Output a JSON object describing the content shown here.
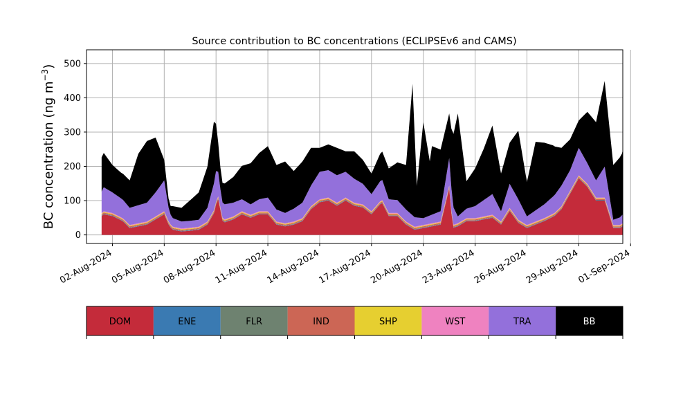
{
  "chart_data": {
    "type": "area",
    "stacked": true,
    "title": "Source contribution to BC concentrations (ECLIPSEv6 and CAMS)",
    "ylabel_main": "BC concentration (ng m",
    "ylabel_sup": "−3",
    "ylabel_close": ")",
    "xlabel": "",
    "ylim": [
      -25,
      540
    ],
    "yticks": [
      0,
      100,
      200,
      300,
      400,
      500
    ],
    "xlim_days": [
      -1.5,
      29.55
    ],
    "grid": true,
    "xtick_labels": [
      "02-Aug-2024",
      "05-Aug-2024",
      "08-Aug-2024",
      "11-Aug-2024",
      "14-Aug-2024",
      "17-Aug-2024",
      "20-Aug-2024",
      "23-Aug-2024",
      "26-Aug-2024",
      "29-Aug-2024",
      "01-Sep-2024"
    ],
    "xtick_days": [
      0,
      3,
      6,
      9,
      12,
      15,
      18,
      21,
      24,
      27,
      30
    ],
    "x_start": "2024-08-01 09:00",
    "x_end": "2024-09-01 00:00",
    "step_hours": 3,
    "series": [
      {
        "name": "DOM",
        "color": "#c42b3a",
        "anchors": [
          [
            -1,
            40
          ],
          [
            -0.5,
            60
          ],
          [
            0,
            55
          ],
          [
            0.6,
            40
          ],
          [
            1,
            20
          ],
          [
            2,
            30
          ],
          [
            2.5,
            45
          ],
          [
            3,
            60
          ],
          [
            3.3,
            25
          ],
          [
            3.5,
            15
          ],
          [
            4,
            10
          ],
          [
            4.5,
            12
          ],
          [
            5,
            15
          ],
          [
            5.5,
            30
          ],
          [
            5.9,
            65
          ],
          [
            6.1,
            110
          ],
          [
            6.4,
            35
          ],
          [
            7,
            45
          ],
          [
            7.5,
            60
          ],
          [
            8,
            50
          ],
          [
            8.5,
            60
          ],
          [
            9,
            60
          ],
          [
            9.5,
            30
          ],
          [
            10,
            25
          ],
          [
            10.5,
            30
          ],
          [
            11,
            40
          ],
          [
            11.5,
            75
          ],
          [
            12,
            95
          ],
          [
            12.5,
            100
          ],
          [
            13,
            85
          ],
          [
            13.5,
            100
          ],
          [
            14,
            85
          ],
          [
            14.5,
            80
          ],
          [
            15,
            60
          ],
          [
            15.6,
            95
          ],
          [
            16,
            55
          ],
          [
            16.5,
            55
          ],
          [
            17,
            30
          ],
          [
            17.5,
            15
          ],
          [
            18,
            20
          ],
          [
            19,
            30
          ],
          [
            19.5,
            135
          ],
          [
            19.7,
            20
          ],
          [
            20,
            25
          ],
          [
            20.5,
            40
          ],
          [
            21,
            40
          ],
          [
            22,
            50
          ],
          [
            22.5,
            30
          ],
          [
            23,
            70
          ],
          [
            23.5,
            35
          ],
          [
            24,
            20
          ],
          [
            24.5,
            30
          ],
          [
            25,
            40
          ],
          [
            25.6,
            55
          ],
          [
            26,
            75
          ],
          [
            26.5,
            120
          ],
          [
            27,
            165
          ],
          [
            27.5,
            140
          ],
          [
            28,
            100
          ],
          [
            28.5,
            100
          ],
          [
            29,
            20
          ],
          [
            29.4,
            20
          ],
          [
            29.8,
            35
          ]
        ]
      },
      {
        "name": "ENE",
        "color": "#3a7ab2",
        "anchors": [
          [
            -1,
            1
          ],
          [
            29.8,
            1
          ]
        ]
      },
      {
        "name": "FLR",
        "color": "#6e8270",
        "anchors": [
          [
            -1,
            1
          ],
          [
            29.8,
            1
          ]
        ]
      },
      {
        "name": "IND",
        "color": "#cc6655",
        "anchors": [
          [
            -1,
            3
          ],
          [
            29.8,
            3
          ]
        ]
      },
      {
        "name": "SHP",
        "color": "#e6cf30",
        "anchors": [
          [
            -1,
            2
          ],
          [
            29.8,
            2
          ]
        ]
      },
      {
        "name": "WST",
        "color": "#ef82c0",
        "anchors": [
          [
            -1,
            2
          ],
          [
            29.8,
            2
          ]
        ]
      },
      {
        "name": "TRA",
        "color": "#9370db",
        "anchors": [
          [
            -1,
            40
          ],
          [
            -0.5,
            70
          ],
          [
            0,
            60
          ],
          [
            1,
            50
          ],
          [
            2,
            55
          ],
          [
            2.5,
            70
          ],
          [
            3,
            90
          ],
          [
            3.3,
            30
          ],
          [
            3.5,
            25
          ],
          [
            4,
            20
          ],
          [
            5,
            20
          ],
          [
            5.5,
            40
          ],
          [
            6,
            90
          ],
          [
            6.3,
            45
          ],
          [
            7,
            40
          ],
          [
            8,
            30
          ],
          [
            8.5,
            35
          ],
          [
            9,
            40
          ],
          [
            9.5,
            35
          ],
          [
            10,
            30
          ],
          [
            11,
            45
          ],
          [
            11.5,
            60
          ],
          [
            12,
            80
          ],
          [
            13,
            80
          ],
          [
            14,
            70
          ],
          [
            14.5,
            60
          ],
          [
            15,
            50
          ],
          [
            15.6,
            60
          ],
          [
            16,
            40
          ],
          [
            17,
            35
          ],
          [
            18,
            20
          ],
          [
            19,
            30
          ],
          [
            19.5,
            80
          ],
          [
            20,
            20
          ],
          [
            21,
            35
          ],
          [
            22,
            60
          ],
          [
            22.5,
            30
          ],
          [
            23,
            70
          ],
          [
            23.5,
            60
          ],
          [
            24,
            25
          ],
          [
            25,
            40
          ],
          [
            26,
            60
          ],
          [
            26.5,
            60
          ],
          [
            27,
            80
          ],
          [
            27.5,
            60
          ],
          [
            28,
            50
          ],
          [
            28.5,
            90
          ],
          [
            29,
            15
          ],
          [
            29.8,
            30
          ]
        ]
      },
      {
        "name": "BB",
        "color": "#000000",
        "anchors": [
          [
            -1,
            100
          ],
          [
            -0.5,
            100
          ],
          [
            0,
            80
          ],
          [
            0.5,
            75
          ],
          [
            1,
            80
          ],
          [
            1.5,
            150
          ],
          [
            2,
            180
          ],
          [
            2.5,
            160
          ],
          [
            3,
            60
          ],
          [
            3.3,
            20
          ],
          [
            3.5,
            35
          ],
          [
            4,
            40
          ],
          [
            4.5,
            60
          ],
          [
            5,
            80
          ],
          [
            5.5,
            120
          ],
          [
            5.9,
            185
          ],
          [
            6.1,
            90
          ],
          [
            6.3,
            55
          ],
          [
            7,
            75
          ],
          [
            8,
            120
          ],
          [
            9,
            150
          ],
          [
            9.5,
            130
          ],
          [
            10,
            150
          ],
          [
            10.5,
            110
          ],
          [
            11,
            120
          ],
          [
            11.5,
            110
          ],
          [
            12,
            70
          ],
          [
            13,
            80
          ],
          [
            13.5,
            60
          ],
          [
            14,
            80
          ],
          [
            14.5,
            70
          ],
          [
            15,
            60
          ],
          [
            15.5,
            80
          ],
          [
            16,
            90
          ],
          [
            17,
            130
          ],
          [
            17.4,
            400
          ],
          [
            17.6,
            80
          ],
          [
            18,
            280
          ],
          [
            18.4,
            150
          ],
          [
            18.5,
            200
          ],
          [
            19,
            180
          ],
          [
            19.5,
            130
          ],
          [
            20,
            300
          ],
          [
            20.5,
            80
          ],
          [
            21,
            110
          ],
          [
            21.5,
            150
          ],
          [
            22,
            200
          ],
          [
            22.5,
            110
          ],
          [
            23,
            120
          ],
          [
            23.5,
            200
          ],
          [
            24,
            100
          ],
          [
            24.5,
            200
          ],
          [
            25,
            180
          ],
          [
            25.5,
            150
          ],
          [
            26,
            110
          ],
          [
            26.5,
            90
          ],
          [
            27,
            80
          ],
          [
            27.5,
            150
          ],
          [
            28,
            170
          ],
          [
            28.5,
            250
          ],
          [
            29,
            160
          ],
          [
            29.5,
            180
          ],
          [
            29.8,
            225
          ]
        ]
      }
    ]
  }
}
